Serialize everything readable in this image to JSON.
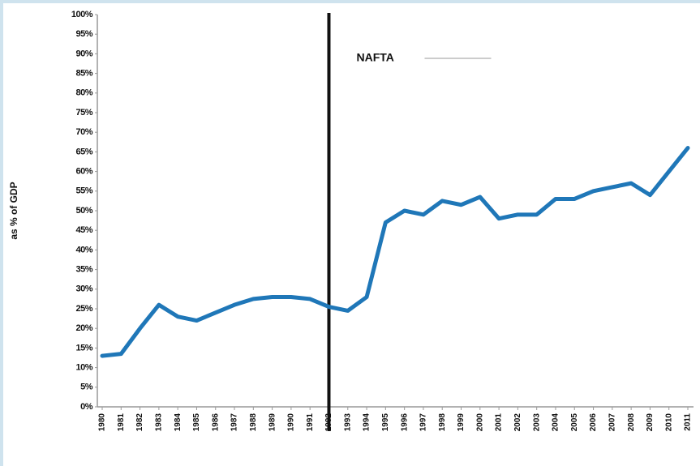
{
  "chart_data": {
    "type": "line",
    "y_label": "as % of GDP",
    "categories": [
      "1980",
      "1981",
      "1982",
      "1983",
      "1984",
      "1985",
      "1986",
      "1987",
      "1988",
      "1989",
      "1990",
      "1991",
      "1992",
      "1993",
      "1994",
      "1995",
      "1996",
      "1997",
      "1998",
      "1999",
      "2000",
      "2001",
      "2002",
      "2003",
      "2004",
      "2005",
      "2006",
      "2007",
      "2008",
      "2009",
      "2010",
      "2011"
    ],
    "series": [
      {
        "name": null,
        "color": "#1f77b8",
        "values": [
          13,
          13.5,
          20,
          26,
          23,
          22,
          24,
          26,
          27.5,
          28,
          28,
          27.5,
          25.5,
          24.5,
          28,
          47,
          50,
          49,
          52.5,
          51.5,
          53.5,
          48,
          49,
          49,
          53,
          53,
          55,
          56,
          57,
          54,
          60,
          66
        ]
      }
    ],
    "ylim": [
      0,
      100
    ],
    "yticks": [
      {
        "value": 0,
        "label": "0%"
      },
      {
        "value": 5,
        "label": "5%"
      },
      {
        "value": 10,
        "label": "10%"
      },
      {
        "value": 15,
        "label": "15%"
      },
      {
        "value": 20,
        "label": "20%"
      },
      {
        "value": 25,
        "label": "25%"
      },
      {
        "value": 30,
        "label": "30%"
      },
      {
        "value": 35,
        "label": "35%"
      },
      {
        "value": 40,
        "label": "40%"
      },
      {
        "value": 45,
        "label": "45%"
      },
      {
        "value": 50,
        "label": "50%"
      },
      {
        "value": 55,
        "label": "55%"
      },
      {
        "value": 60,
        "label": "60%"
      },
      {
        "value": 65,
        "label": "65%"
      },
      {
        "value": 70,
        "label": "70%"
      },
      {
        "value": 75,
        "label": "75%"
      },
      {
        "value": 80,
        "label": "80%"
      },
      {
        "value": 85,
        "label": "85%"
      },
      {
        "value": 90,
        "label": "90%"
      },
      {
        "value": 95,
        "label": "95%"
      },
      {
        "value": 100,
        "label": "100%"
      }
    ],
    "annotation": {
      "label": "NAFTA",
      "category": "1992"
    }
  }
}
